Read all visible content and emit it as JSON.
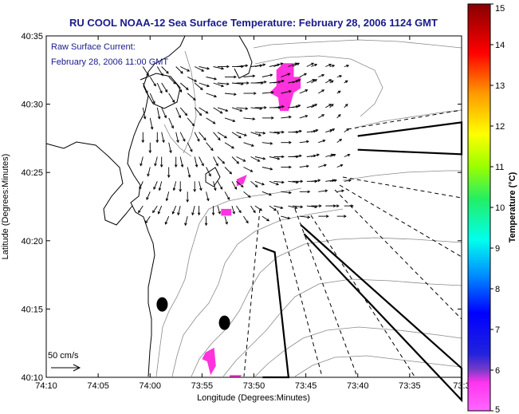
{
  "title": "RU COOL  NOAA-12  Sea Surface Temperature:  February 28, 2006 1124 GMT",
  "note_line1": "Raw Surface Current:",
  "note_line2": "February 28, 2006 11:00 GMT",
  "scale_label": "50 cm/s",
  "xlabel": "Longitude (Degrees:Minutes)",
  "ylabel": "Latitude (Degrees:Minutes)",
  "colorbar_label": "Temperature (°C)",
  "colors": {
    "title": "#1a1a8c",
    "land": "#ffffff",
    "sst_patch": "#ff33dd",
    "vector": "#000000",
    "contour": "#888888"
  },
  "chart_data": {
    "type": "map",
    "x_ticks": [
      "74:10",
      "74:05",
      "74:00",
      "73:55",
      "73:50",
      "73:45",
      "73:40",
      "73:35",
      "73:3"
    ],
    "y_ticks": [
      "40:35",
      "40:30",
      "40:25",
      "40:20",
      "40:15",
      "40:10"
    ],
    "xlim_min": [
      -74.1667,
      -73.5
    ],
    "ylim_deg": [
      40.1667,
      40.5833
    ],
    "colorbar": {
      "min": 5,
      "max": 15,
      "ticks": [
        "5",
        "6",
        "7",
        "8",
        "9",
        "10",
        "11",
        "12",
        "13",
        "14",
        "15"
      ]
    },
    "sst_patches_lonlat": [
      [
        [
          -73.7861,
          40.55
        ],
        [
          -73.7694,
          40.55
        ],
        [
          -73.7694,
          40.5333
        ],
        [
          -73.7583,
          40.5333
        ],
        [
          -73.7583,
          40.5194
        ],
        [
          -73.7694,
          40.5139
        ],
        [
          -73.7778,
          40.4917
        ],
        [
          -73.7917,
          40.4917
        ],
        [
          -73.7944,
          40.5083
        ],
        [
          -73.8083,
          40.5139
        ],
        [
          -73.7972,
          40.5222
        ],
        [
          -73.7972,
          40.5417
        ]
      ],
      [
        [
          -73.8611,
          40.4083
        ],
        [
          -73.8444,
          40.4139
        ],
        [
          -73.85,
          40.4028
        ],
        [
          -73.8611,
          40.4
        ]
      ],
      [
        [
          -73.8861,
          40.3722
        ],
        [
          -73.8694,
          40.3722
        ],
        [
          -73.8694,
          40.3639
        ],
        [
          -73.8861,
          40.3639
        ]
      ],
      [
        [
          -73.9111,
          40.1972
        ],
        [
          -73.8972,
          40.2028
        ],
        [
          -73.8944,
          40.1806
        ],
        [
          -73.9028,
          40.1694
        ],
        [
          -73.9083,
          40.1861
        ],
        [
          -73.9167,
          40.1889
        ]
      ],
      [
        [
          -73.8722,
          40.1694
        ],
        [
          -73.8528,
          40.1694
        ],
        [
          -73.8556,
          40.1667
        ],
        [
          -73.8722,
          40.1667
        ]
      ]
    ],
    "markers_lonlat": [
      [
        -73.9806,
        40.2556
      ],
      [
        -73.8806,
        40.2333
      ]
    ],
    "radar_beams_lonlat": [
      [
        [
          -73.6667,
          40.4611
        ],
        [
          -73.5,
          40.4778
        ],
        [
          -73.5,
          40.4389
        ],
        [
          -73.6667,
          40.4444
        ]
      ],
      [
        [
          -73.7583,
          40.3528
        ],
        [
          -73.5,
          40.1778
        ],
        [
          -73.5,
          40.1389
        ],
        [
          -73.7528,
          40.3417
        ]
      ],
      [
        [
          -73.8194,
          40.325
        ],
        [
          -73.8,
          40.3194
        ],
        [
          -73.7778,
          40.1667
        ],
        [
          -73.8194,
          40.1667
        ]
      ]
    ],
    "vector_field_lonlat": {
      "lon": [
        -74.0,
        -73.97,
        -73.94,
        -73.91,
        -73.88,
        -73.85,
        -73.82,
        -73.79,
        -73.76,
        -73.73,
        -73.7
      ],
      "lat": [
        40.54,
        40.52,
        40.49,
        40.46,
        40.43,
        40.4,
        40.37
      ],
      "u": [
        [
          0.5,
          0.6,
          0.8,
          0.9,
          1.0,
          1.0,
          0.9,
          0.8,
          0.6,
          0.5,
          0.4
        ],
        [
          0.4,
          0.5,
          0.7,
          0.9,
          1.0,
          1.1,
          1.0,
          0.9,
          0.7,
          0.5,
          0.3
        ],
        [
          0.2,
          0.4,
          0.6,
          0.8,
          0.9,
          1.0,
          1.0,
          0.9,
          0.7,
          0.5,
          0.3
        ],
        [
          0.0,
          0.2,
          0.4,
          0.6,
          0.8,
          0.9,
          0.9,
          0.9,
          0.8,
          0.6,
          0.4
        ],
        [
          -0.2,
          0.0,
          0.2,
          0.4,
          0.6,
          0.8,
          0.9,
          0.9,
          0.8,
          0.7,
          0.5
        ],
        [
          -0.3,
          -0.2,
          0.0,
          0.2,
          0.4,
          0.6,
          0.8,
          0.9,
          0.9,
          0.8,
          0.6
        ],
        [
          -0.4,
          -0.3,
          -0.2,
          0.0,
          0.2,
          0.4,
          0.6,
          0.8,
          0.9,
          0.9,
          0.8
        ]
      ],
      "v": [
        [
          -0.8,
          -0.6,
          -0.4,
          -0.2,
          0.0,
          0.1,
          0.2,
          0.3,
          0.3,
          0.2,
          0.1
        ],
        [
          -0.9,
          -0.8,
          -0.6,
          -0.3,
          -0.1,
          0.0,
          0.1,
          0.2,
          0.3,
          0.3,
          0.2
        ],
        [
          -1.0,
          -0.9,
          -0.7,
          -0.5,
          -0.3,
          -0.1,
          0.0,
          0.1,
          0.2,
          0.3,
          0.3
        ],
        [
          -0.9,
          -0.9,
          -0.8,
          -0.7,
          -0.5,
          -0.3,
          -0.1,
          0.0,
          0.1,
          0.2,
          0.3
        ],
        [
          -0.8,
          -0.9,
          -0.9,
          -0.8,
          -0.6,
          -0.4,
          -0.2,
          0.0,
          0.1,
          0.2,
          0.2
        ],
        [
          -0.7,
          -0.8,
          -0.9,
          -0.8,
          -0.7,
          -0.5,
          -0.3,
          -0.1,
          0.0,
          0.1,
          0.1
        ],
        [
          -0.6,
          -0.7,
          -0.8,
          -0.8,
          -0.7,
          -0.6,
          -0.4,
          -0.2,
          -0.1,
          0.0,
          0.0
        ]
      ]
    }
  }
}
